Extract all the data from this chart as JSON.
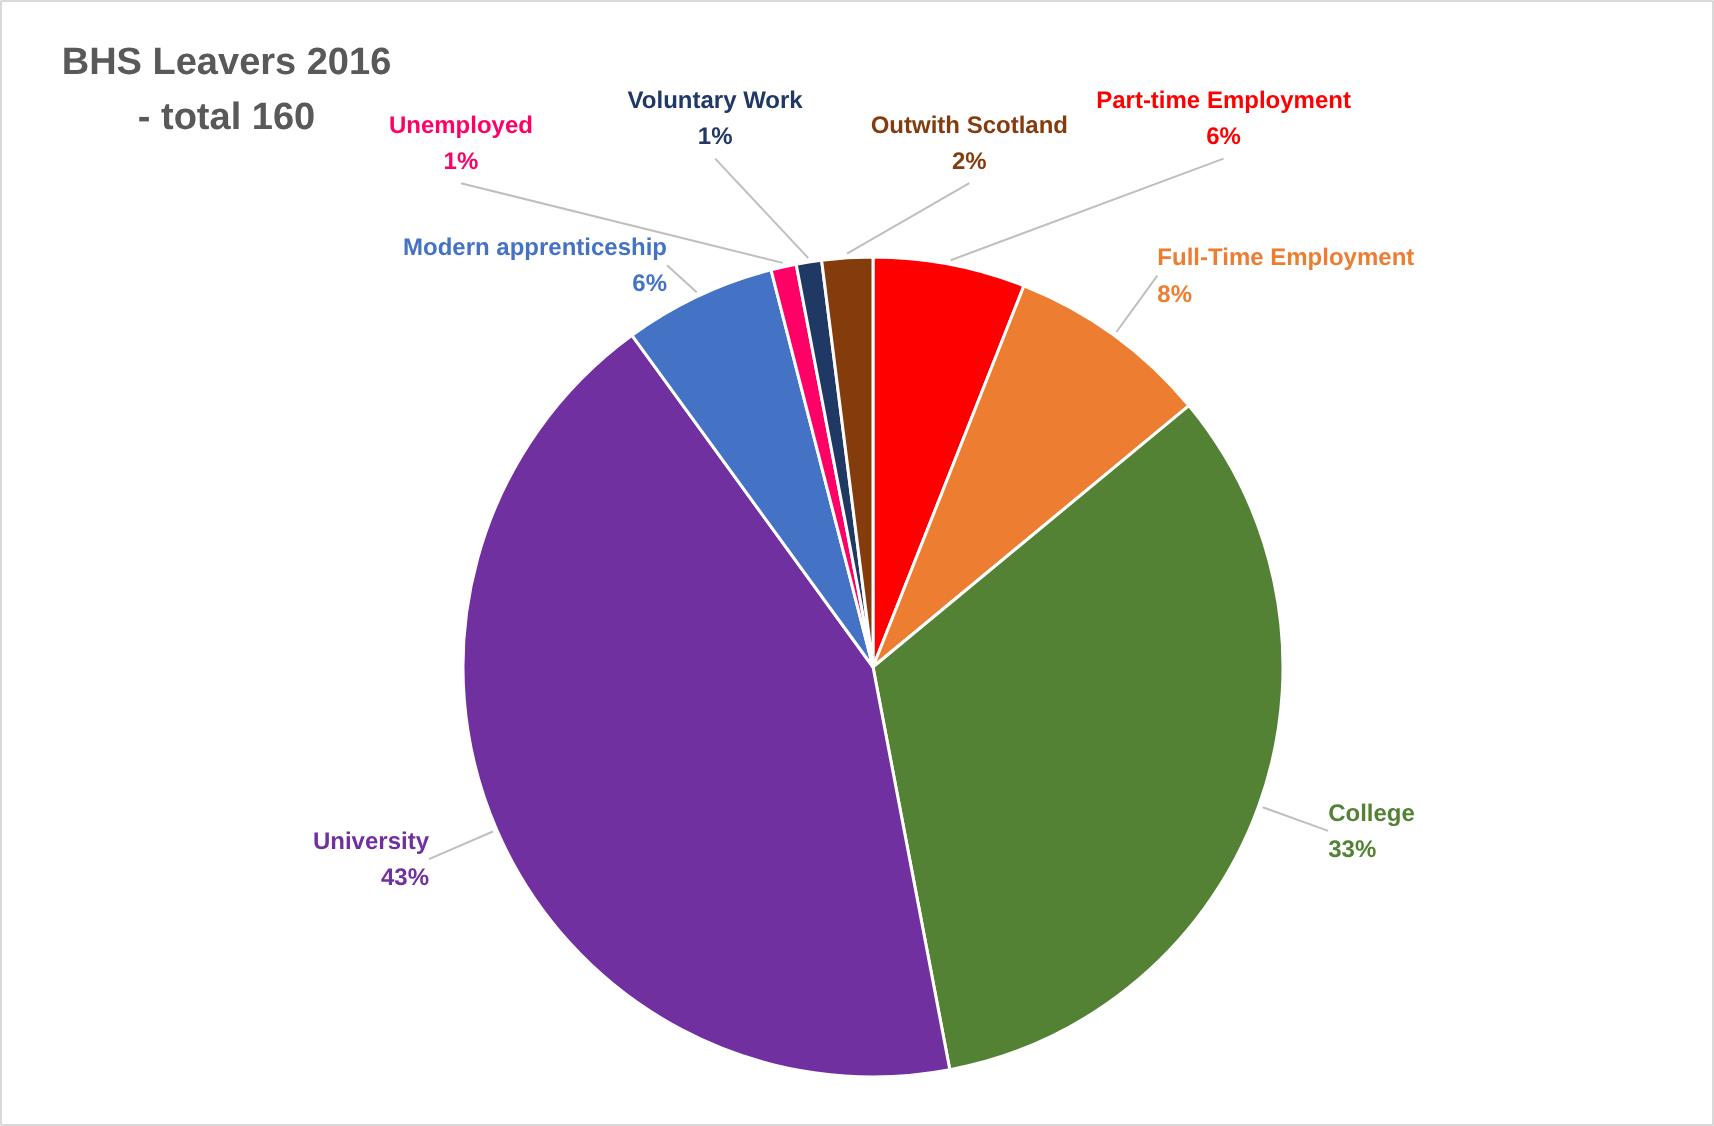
{
  "chart_data": {
    "type": "pie",
    "title": "BHS Leavers 2016\n- total 160",
    "categories": [
      "Part-time Employment",
      "Full-Time Employment",
      "College",
      "University",
      "Modern apprenticeship",
      "Unemployed",
      "Voluntary Work",
      "Outwith Scotland"
    ],
    "values": [
      6,
      8,
      33,
      43,
      6,
      1,
      1,
      2
    ],
    "value_labels": [
      "6%",
      "8%",
      "33%",
      "43%",
      "6%",
      "1%",
      "1%",
      "2%"
    ],
    "colors": [
      "#ff0000",
      "#ed7d31",
      "#548235",
      "#7030a0",
      "#4472c4",
      "#ff0066",
      "#1f3864",
      "#843c0c"
    ]
  }
}
